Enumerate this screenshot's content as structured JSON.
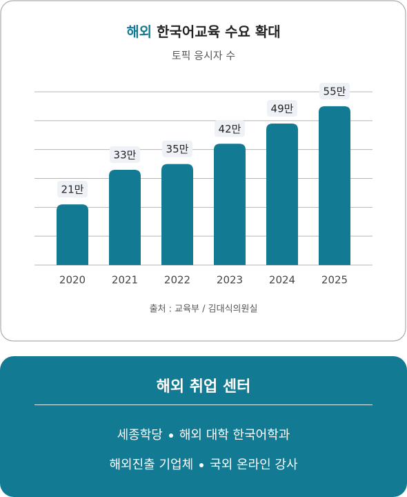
{
  "chart_data": {
    "type": "bar",
    "title": {
      "highlight": "해외",
      "rest": "한국어교육 수요 확대"
    },
    "subtitle": "토픽 응시자 수",
    "categories": [
      "2020",
      "2021",
      "2022",
      "2023",
      "2024",
      "2025"
    ],
    "values": [
      21,
      33,
      35,
      42,
      49,
      55
    ],
    "value_labels": [
      "21만",
      "33만",
      "35만",
      "42만",
      "49만",
      "55만"
    ],
    "color": "#127a93",
    "ylim": [
      0,
      60
    ],
    "yticks": [
      0,
      10,
      20,
      30,
      40,
      50,
      60
    ],
    "grid": true,
    "source": "출처 : 교육부 / 김대식의원실"
  },
  "center": {
    "title": "해외 취업 센터",
    "lines": [
      [
        "세종학당",
        "해외 대학 한국어학과"
      ],
      [
        "해외진출 기업체",
        "국외 온라인 강사"
      ]
    ]
  }
}
